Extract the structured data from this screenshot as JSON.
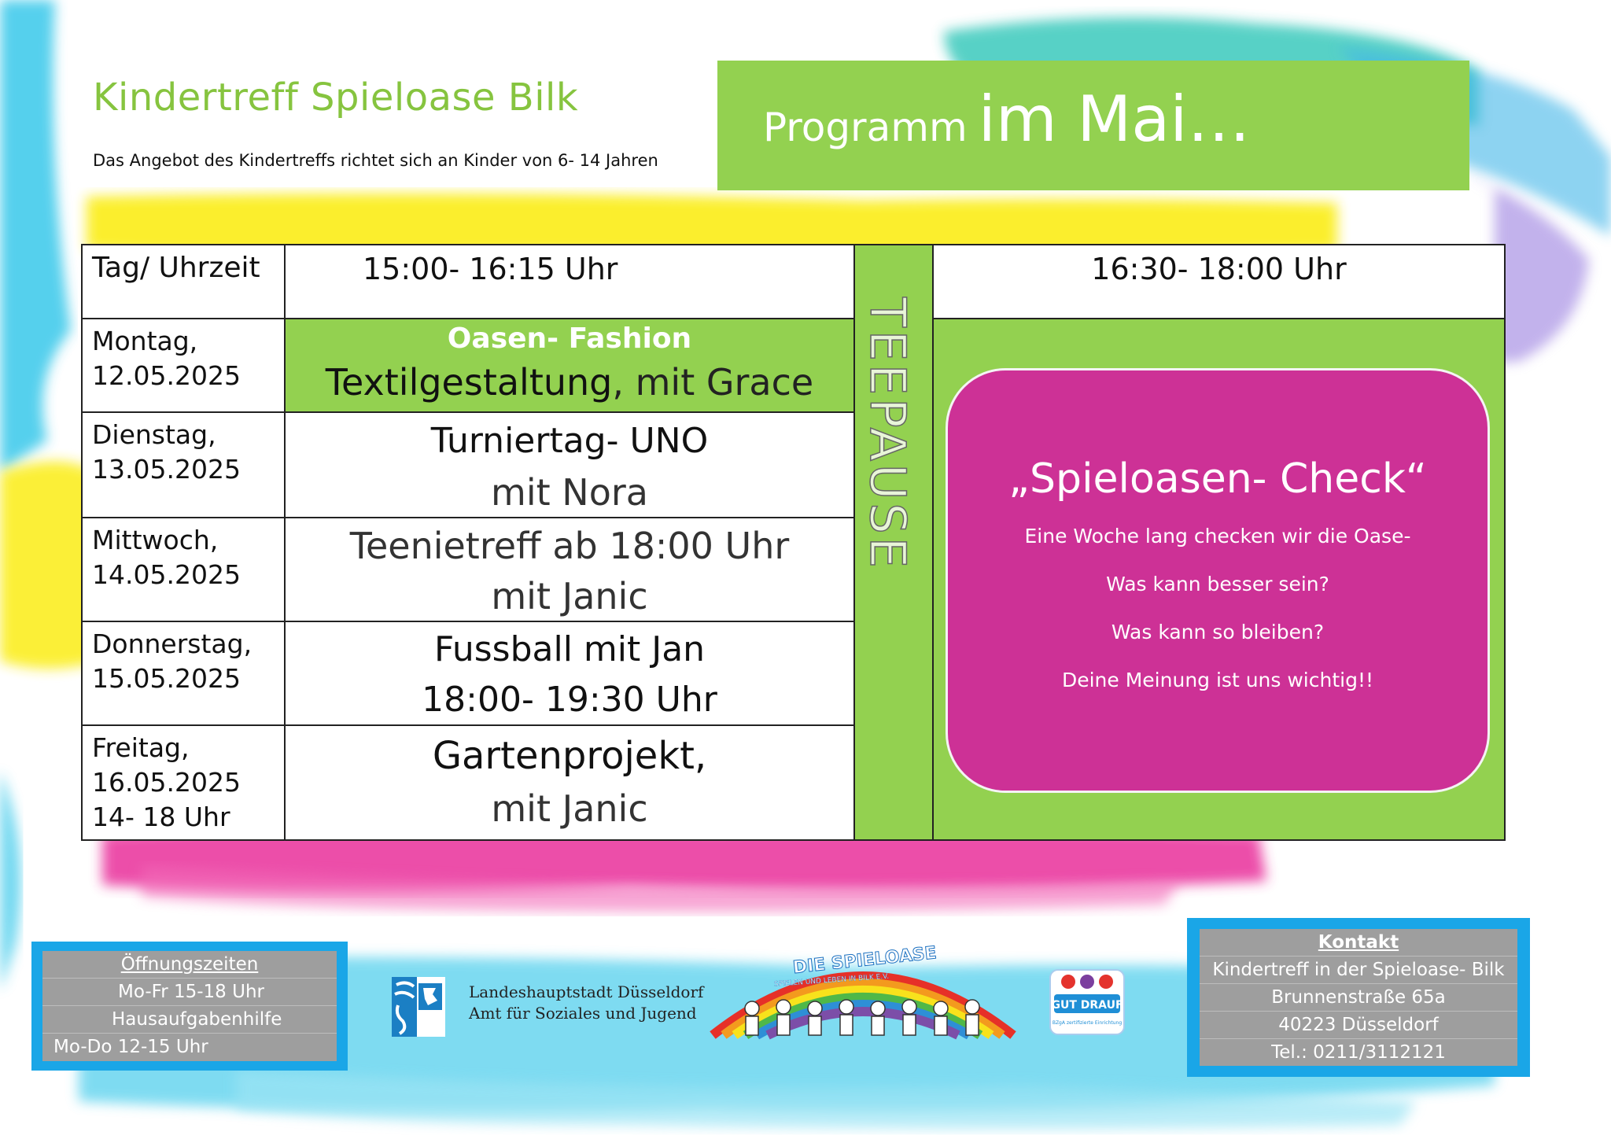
{
  "header": {
    "title": "Kindertreff Spieloase Bilk",
    "subtitle": "Das Angebot des Kindertreffs richtet sich an Kinder von 6- 14 Jahren"
  },
  "program": {
    "label_small": "Programm",
    "label_big": "im Mai…"
  },
  "schedule": {
    "head_day": "Tag/ Uhrzeit",
    "head_slot_a": "15:00- 16:15 Uhr",
    "head_slot_b": "16:30- 18:00 Uhr",
    "break_label": "TEEPAUSE",
    "rows": [
      {
        "day": "Montag,",
        "date": "12.05.2025",
        "extra": "",
        "line1": "Oasen- Fashion",
        "line2a": "Textilgestaltung",
        "line2b": ", mit Grace"
      },
      {
        "day": "Dienstag,",
        "date": "13.05.2025",
        "extra": "",
        "line1": "Turniertag- UNO",
        "line2": "mit Nora"
      },
      {
        "day": "Mittwoch,",
        "date": "14.05.2025",
        "extra": "",
        "line1": "Teenietreff ab 18:00 Uhr",
        "line2": "mit Janic"
      },
      {
        "day": "Donnerstag,",
        "date": "15.05.2025",
        "extra": "",
        "line1": "Fussball mit Jan",
        "line2": "18:00- 19:30 Uhr"
      },
      {
        "day": "Freitag,",
        "date": "16.05.2025",
        "extra": "14- 18 Uhr",
        "line1": "Gartenprojekt,",
        "line2": "mit Janic"
      }
    ]
  },
  "check": {
    "title": "„Spieloasen- Check“",
    "lines": [
      "Eine Woche lang checken wir die Oase-",
      "Was kann besser sein?",
      "Was kann so bleiben?",
      "Deine Meinung ist uns wichtig!!"
    ]
  },
  "opening": {
    "title": "Öffnungszeiten",
    "lines": [
      "Mo-Fr 15-18 Uhr",
      "Hausaufgabenhilfe",
      "Mo-Do 12-15 Uhr"
    ]
  },
  "contact": {
    "title": "Kontakt",
    "lines": [
      "Kindertreff in der Spieloase- Bilk",
      "Brunnenstraße 65a",
      "40223 Düsseldorf",
      "Tel.: 0211/3112121"
    ]
  },
  "logos": {
    "city_line1": "Landeshauptstadt Düsseldorf",
    "city_line2": "Amt für Soziales und Jugend",
    "spieloase_name": "DIE SPIELOASE",
    "spieloase_tagline": "SPIELEN UND LEBEN IN BILK E.V.",
    "gutdrauf": "GUT DRAUF",
    "gutdrauf_sub": "BZgA zertifizierte Einrichtung"
  },
  "colors": {
    "green": "#93d150",
    "title_green": "#86c43f",
    "magenta": "#cd3196",
    "blue": "#1aa6e7",
    "gray_header": "#d9d9d9"
  }
}
